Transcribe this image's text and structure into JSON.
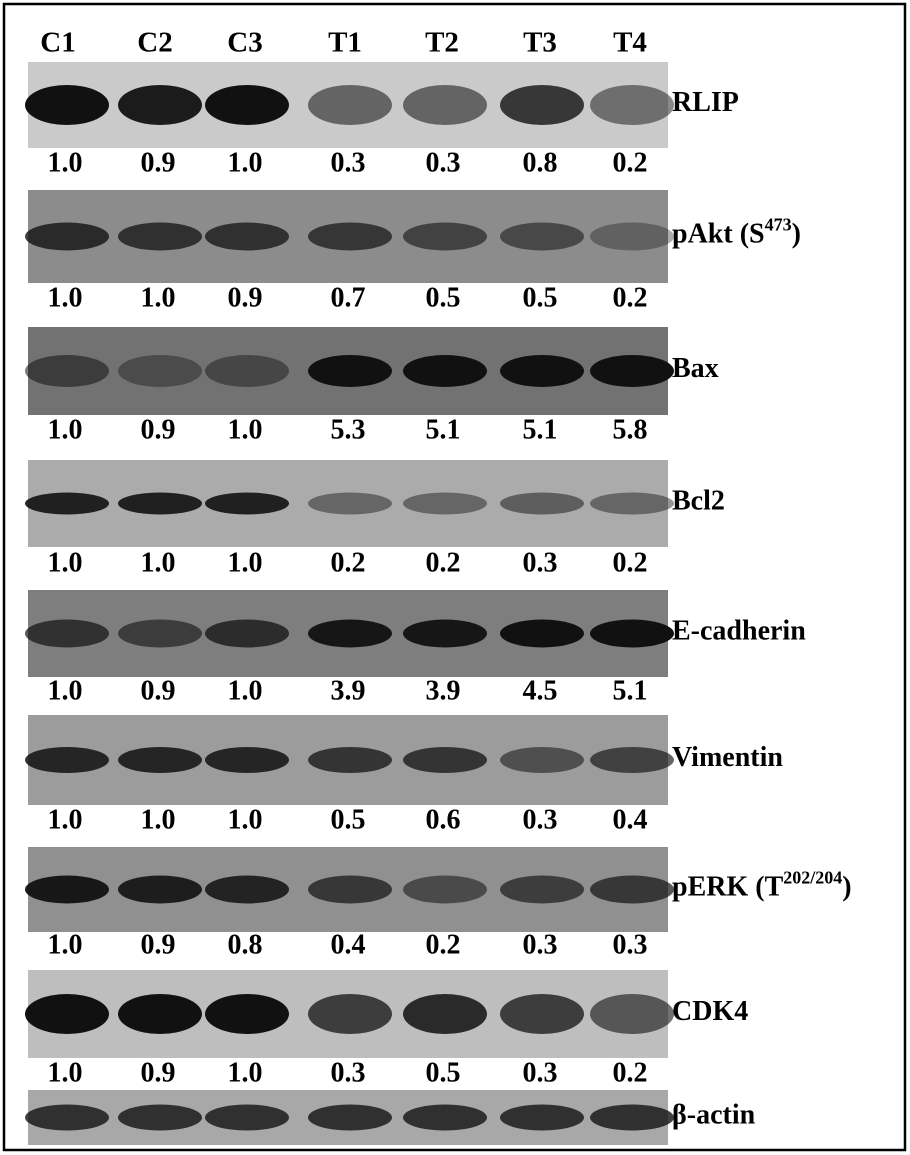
{
  "lanes": [
    "C1",
    "C2",
    "C3",
    "T1",
    "T2",
    "T3",
    "T4"
  ],
  "panels": [
    {
      "label": "RLIP",
      "values": [
        "1.0",
        "0.9",
        "1.0",
        "0.3",
        "0.3",
        "0.8",
        "0.2"
      ]
    },
    {
      "label": "pAkt (S",
      "label_sup": "473",
      "label_end": ")",
      "values": [
        "1.0",
        "1.0",
        "0.9",
        "0.7",
        "0.5",
        "0.5",
        "0.2"
      ]
    },
    {
      "label": "Bax",
      "values": [
        "1.0",
        "0.9",
        "1.0",
        "5.3",
        "5.1",
        "5.1",
        "5.8"
      ]
    },
    {
      "label": "Bcl2",
      "values": [
        "1.0",
        "1.0",
        "1.0",
        "0.2",
        "0.2",
        "0.3",
        "0.2"
      ]
    },
    {
      "label": "E-cadherin",
      "values": [
        "1.0",
        "0.9",
        "1.0",
        "3.9",
        "3.9",
        "4.5",
        "5.1"
      ]
    },
    {
      "label": "Vimentin",
      "values": [
        "1.0",
        "1.0",
        "1.0",
        "0.5",
        "0.6",
        "0.3",
        "0.4"
      ]
    },
    {
      "label": "pERK (T",
      "label_sup": "202/204",
      "label_end": ")",
      "values": [
        "1.0",
        "0.9",
        "0.8",
        "0.4",
        "0.2",
        "0.3",
        "0.3"
      ]
    },
    {
      "label": "CDK4",
      "values": [
        "1.0",
        "0.9",
        "1.0",
        "0.3",
        "0.5",
        "0.3",
        "0.2"
      ]
    },
    {
      "label": "β-actin"
    }
  ]
}
